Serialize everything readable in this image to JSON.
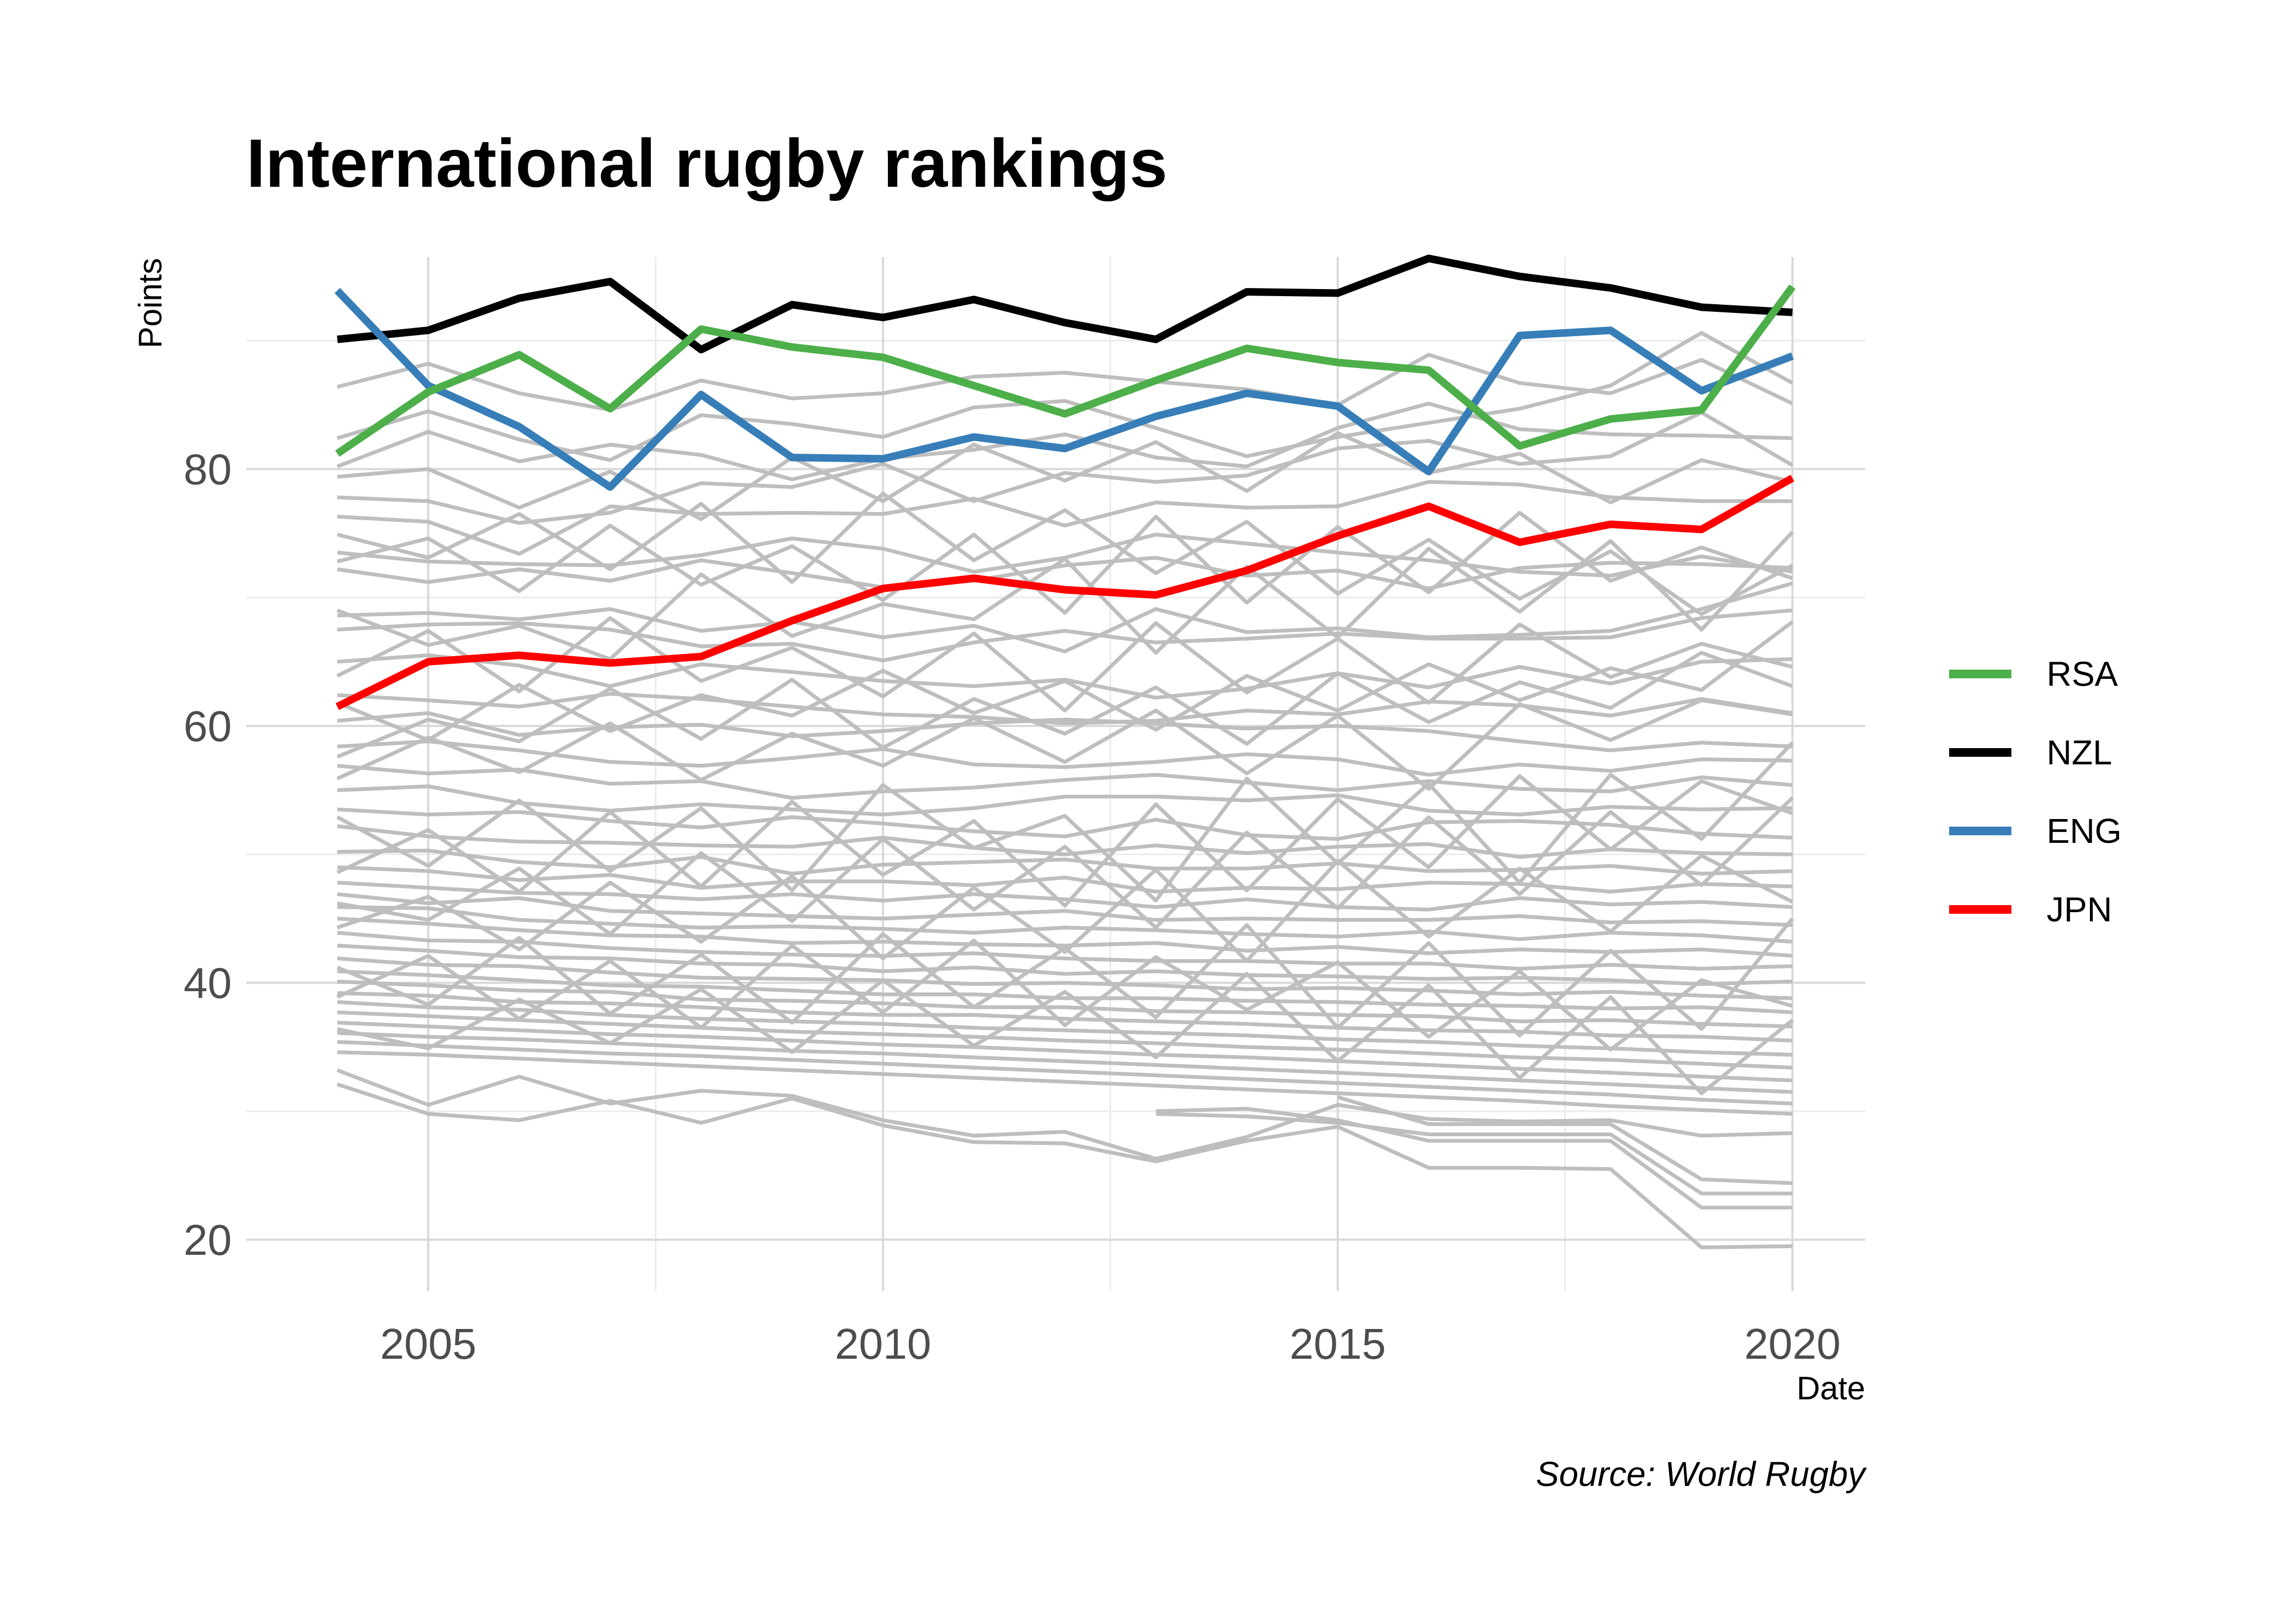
{
  "chart_data": {
    "type": "line",
    "title": "International rugby rankings",
    "xlabel": "Date",
    "ylabel": "Points",
    "caption": "Source: World Rugby",
    "x": [
      2004,
      2005,
      2006,
      2007,
      2008,
      2009,
      2010,
      2011,
      2012,
      2013,
      2014,
      2015,
      2016,
      2017,
      2018,
      2019,
      2020
    ],
    "xlim": [
      2003,
      2020.8
    ],
    "ylim": [
      16,
      96.5
    ],
    "x_ticks": [
      "2005",
      "2010",
      "2015",
      "2020"
    ],
    "x_tick_values": [
      2005,
      2010,
      2015,
      2020
    ],
    "y_ticks": [
      "20",
      "40",
      "60",
      "80"
    ],
    "y_tick_values": [
      20,
      40,
      60,
      80
    ],
    "grid": true,
    "legend_position": "right",
    "highlight_series": [
      {
        "name": "RSA",
        "color": "#4daf4a",
        "values": [
          81.2,
          86.0,
          88.9,
          84.7,
          90.9,
          89.5,
          88.7,
          86.5,
          84.3,
          86.9,
          89.4,
          88.3,
          87.7,
          81.8,
          83.9,
          84.6,
          94.2
        ]
      },
      {
        "name": "NZL",
        "color": "#000000",
        "values": [
          90.1,
          90.8,
          93.3,
          94.6,
          89.3,
          92.8,
          91.8,
          93.2,
          91.4,
          90.1,
          93.8,
          93.7,
          96.4,
          95.0,
          94.1,
          92.6,
          92.2
        ]
      },
      {
        "name": "ENG",
        "color": "#377eb8",
        "values": [
          93.9,
          86.5,
          83.3,
          78.6,
          85.8,
          80.9,
          80.8,
          82.5,
          81.6,
          84.1,
          85.9,
          84.9,
          79.8,
          90.4,
          90.8,
          86.1,
          88.8
        ]
      },
      {
        "name": "JPN",
        "color": "#ff0000",
        "values": [
          61.5,
          65.0,
          65.5,
          64.9,
          65.4,
          68.2,
          70.7,
          71.5,
          70.6,
          70.2,
          72.1,
          74.8,
          77.1,
          74.3,
          75.7,
          75.3,
          79.3
        ]
      }
    ],
    "background_series_color": "#bebebe",
    "background_series": [
      [
        86.4,
        88.2,
        85.9,
        84.6,
        86.9,
        85.5,
        85.9,
        87.2,
        87.5,
        86.8,
        86.2,
        85.0,
        88.9,
        86.7,
        85.9,
        88.5,
        85.1
      ],
      [
        82.4,
        84.5,
        82.3,
        80.7,
        84.2,
        83.5,
        82.5,
        84.8,
        85.3,
        83.2,
        81.0,
        82.5,
        83.6,
        84.7,
        86.5,
        90.6,
        86.7
      ],
      [
        80.2,
        82.9,
        80.6,
        81.9,
        81.1,
        79.2,
        80.8,
        81.5,
        82.7,
        80.9,
        80.2,
        83.2,
        85.1,
        83.1,
        82.7,
        82.6,
        82.4
      ],
      [
        77.8,
        77.5,
        75.8,
        76.6,
        78.9,
        78.6,
        80.4,
        77.5,
        79.7,
        79.0,
        79.5,
        81.6,
        82.2,
        80.4,
        81.0,
        84.4,
        80.3
      ],
      [
        76.3,
        75.9,
        73.4,
        77.1,
        76.5,
        76.6,
        76.5,
        77.7,
        75.6,
        77.4,
        77.0,
        77.1,
        79.0,
        78.8,
        77.8,
        77.5,
        77.5
      ],
      [
        73.5,
        72.8,
        72.6,
        72.5,
        73.3,
        74.6,
        73.8,
        72.0,
        73.1,
        74.9,
        74.2,
        73.5,
        72.9,
        72.0,
        71.7,
        73.2,
        72.0
      ],
      [
        72.2,
        71.2,
        72.2,
        71.3,
        72.9,
        71.9,
        70.8,
        71.3,
        72.5,
        73.1,
        71.7,
        72.1,
        70.7,
        72.3,
        72.7,
        72.6,
        72.3
      ],
      [
        68.6,
        68.8,
        68.3,
        69.1,
        67.4,
        68.1,
        66.9,
        67.8,
        65.8,
        69.1,
        67.3,
        67.6,
        66.9,
        67.1,
        67.4,
        69.1,
        71.1
      ],
      [
        67.5,
        67.9,
        68.0,
        67.5,
        66.2,
        66.4,
        65.1,
        66.5,
        67.4,
        66.5,
        66.8,
        67.2,
        66.8,
        66.8,
        66.9,
        68.4,
        69.0
      ],
      [
        65.0,
        65.5,
        64.7,
        63.1,
        64.8,
        64.2,
        63.5,
        63.1,
        63.6,
        62.2,
        62.9,
        64.1,
        63.0,
        64.6,
        63.3,
        65.0,
        65.2
      ],
      [
        62.4,
        62.0,
        61.5,
        62.5,
        62.1,
        61.5,
        60.9,
        60.7,
        60.2,
        60.4,
        61.2,
        60.9,
        61.9,
        61.6,
        60.8,
        62.1,
        61.0
      ],
      [
        60.4,
        61.0,
        59.3,
        59.9,
        60.1,
        59.2,
        59.6,
        60.2,
        60.5,
        60.2,
        59.8,
        60.0,
        59.6,
        58.8,
        58.1,
        58.7,
        58.4
      ],
      [
        58.4,
        58.8,
        58.1,
        57.2,
        56.9,
        57.5,
        58.2,
        57.0,
        56.8,
        57.2,
        57.8,
        57.4,
        56.2,
        57.0,
        56.5,
        57.4,
        57.3
      ],
      [
        56.9,
        56.3,
        56.6,
        55.5,
        55.7,
        54.4,
        54.9,
        55.2,
        55.8,
        56.2,
        55.6,
        55.0,
        55.7,
        55.1,
        54.9,
        56.0,
        55.4
      ],
      [
        55.0,
        55.3,
        54.0,
        53.4,
        53.9,
        53.5,
        53.1,
        53.6,
        54.5,
        54.5,
        54.2,
        54.6,
        53.4,
        53.1,
        53.7,
        53.5,
        53.6
      ],
      [
        53.5,
        53.1,
        53.3,
        52.6,
        52.1,
        52.9,
        52.4,
        51.8,
        51.4,
        52.7,
        51.5,
        51.2,
        52.5,
        52.6,
        52.3,
        51.6,
        51.3
      ],
      [
        52.2,
        51.4,
        51.0,
        50.9,
        50.7,
        50.6,
        51.3,
        50.5,
        50.0,
        50.7,
        50.1,
        50.6,
        50.8,
        49.8,
        50.4,
        50.1,
        50.0
      ],
      [
        50.2,
        50.3,
        49.4,
        49.0,
        49.8,
        48.5,
        49.2,
        49.4,
        49.6,
        48.9,
        48.9,
        49.3,
        48.7,
        48.8,
        49.1,
        48.5,
        48.7
      ],
      [
        49.0,
        48.7,
        48.0,
        48.4,
        47.4,
        47.9,
        47.9,
        47.6,
        48.2,
        47.1,
        47.4,
        47.3,
        47.8,
        47.7,
        47.1,
        47.7,
        47.5
      ],
      [
        47.8,
        47.4,
        47.0,
        46.9,
        46.5,
        46.9,
        46.4,
        46.9,
        46.5,
        45.9,
        46.5,
        45.9,
        45.7,
        46.6,
        46.1,
        46.3,
        45.9
      ],
      [
        46.9,
        46.2,
        46.6,
        45.6,
        45.4,
        45.2,
        45.0,
        45.3,
        45.6,
        44.9,
        45.0,
        44.9,
        44.9,
        45.2,
        44.7,
        44.8,
        44.5
      ],
      [
        45.9,
        45.8,
        44.9,
        44.6,
        44.3,
        44.4,
        44.2,
        43.9,
        44.3,
        44.1,
        43.8,
        43.6,
        44.0,
        43.4,
        43.9,
        43.7,
        43.2
      ],
      [
        45.0,
        44.6,
        44.1,
        43.7,
        43.6,
        43.1,
        43.2,
        43.0,
        42.9,
        43.1,
        42.5,
        42.8,
        42.3,
        42.6,
        42.4,
        42.6,
        42.1
      ],
      [
        43.9,
        43.3,
        43.2,
        42.7,
        42.4,
        42.2,
        42.1,
        42.3,
        41.9,
        41.7,
        41.7,
        41.5,
        41.5,
        41.1,
        41.4,
        41.1,
        41.3
      ],
      [
        42.9,
        42.5,
        42.0,
        41.9,
        41.5,
        41.4,
        40.9,
        41.2,
        40.7,
        40.9,
        40.6,
        40.5,
        40.3,
        40.4,
        40.2,
        39.9,
        40.1
      ],
      [
        41.9,
        41.4,
        41.3,
        40.8,
        40.4,
        40.3,
        40.2,
        39.9,
        40.0,
        39.8,
        39.5,
        39.6,
        39.4,
        39.1,
        39.3,
        39.0,
        38.8
      ],
      [
        40.9,
        40.6,
        40.2,
        39.8,
        39.7,
        39.4,
        39.1,
        39.1,
        38.8,
        38.8,
        38.6,
        38.5,
        38.3,
        38.2,
        38.0,
        38.1,
        37.7
      ],
      [
        40.1,
        39.8,
        39.4,
        39.3,
        38.7,
        38.6,
        38.4,
        38.1,
        38.1,
        37.8,
        37.7,
        37.5,
        37.4,
        37.0,
        37.1,
        36.8,
        36.6
      ],
      [
        39.2,
        39.0,
        38.5,
        38.4,
        38.1,
        37.7,
        37.5,
        37.5,
        37.2,
        37.0,
        36.8,
        36.5,
        36.3,
        36.2,
        35.9,
        35.8,
        35.5
      ],
      [
        38.5,
        38.1,
        37.9,
        37.5,
        37.2,
        37.0,
        36.8,
        36.5,
        36.3,
        36.1,
        35.9,
        35.6,
        35.4,
        35.1,
        34.9,
        34.6,
        34.4
      ],
      [
        37.7,
        37.4,
        37.1,
        36.8,
        36.5,
        36.2,
        36.0,
        35.8,
        35.5,
        35.3,
        35.0,
        34.8,
        34.5,
        34.2,
        34.0,
        33.7,
        33.4
      ],
      [
        36.9,
        36.6,
        36.3,
        36.0,
        35.8,
        35.5,
        35.2,
        35.0,
        34.7,
        34.4,
        34.2,
        33.9,
        33.6,
        33.3,
        33.0,
        32.7,
        32.4
      ],
      [
        36.1,
        35.8,
        35.6,
        35.3,
        35.0,
        34.7,
        34.5,
        34.2,
        33.9,
        33.6,
        33.3,
        33.0,
        32.7,
        32.4,
        32.1,
        31.8,
        31.5
      ],
      [
        35.4,
        35.1,
        34.8,
        34.5,
        34.3,
        34.0,
        33.7,
        33.4,
        33.1,
        32.8,
        32.5,
        32.2,
        31.9,
        31.6,
        31.3,
        30.9,
        30.6
      ],
      [
        34.6,
        34.4,
        34.1,
        33.8,
        33.5,
        33.2,
        32.9,
        32.6,
        32.3,
        32.0,
        31.7,
        31.4,
        31.1,
        30.8,
        30.4,
        30.1,
        29.8
      ],
      [
        33.2,
        30.5,
        32.7,
        30.6,
        31.6,
        31.2,
        29.3,
        28.1,
        28.4,
        26.3,
        28.0,
        30.5,
        29.4,
        29.2,
        29.3,
        28.1,
        28.3
      ],
      [
        32.1,
        29.8,
        29.3,
        30.8,
        29.1,
        31.0,
        28.9,
        27.6,
        27.5,
        26.1,
        27.7,
        28.8,
        25.6,
        25.6,
        25.5,
        19.4,
        19.5
      ],
      [
        null,
        null,
        null,
        null,
        null,
        null,
        null,
        null,
        null,
        30.0,
        30.2,
        29.3,
        27.7,
        27.7,
        27.7,
        22.5,
        22.5
      ],
      [
        null,
        null,
        null,
        null,
        null,
        null,
        null,
        null,
        null,
        29.8,
        29.6,
        29.1,
        28.2,
        28.2,
        28.2,
        23.6,
        23.6
      ],
      [
        null,
        null,
        null,
        null,
        null,
        null,
        null,
        null,
        null,
        null,
        null,
        31.1,
        29.0,
        29.0,
        29.0,
        24.7,
        24.4
      ],
      [
        61.8,
        58.9,
        63.2,
        59.6,
        62.4,
        60.8,
        64.3,
        61.0,
        63.5,
        59.7,
        63.9,
        61.2,
        64.8,
        62.0,
        64.5,
        62.8,
        68.1
      ],
      [
        55.9,
        59.1,
        56.4,
        60.2,
        55.8,
        59.4,
        56.9,
        60.6,
        57.2,
        61.2,
        56.3,
        60.8,
        55.1,
        61.7,
        58.9,
        62.0,
        60.9
      ],
      [
        52.9,
        49.1,
        54.2,
        48.7,
        53.6,
        47.2,
        55.4,
        50.5,
        53.0,
        46.4,
        55.9,
        49.3,
        55.5,
        47.8,
        56.2,
        51.2,
        58.7
      ],
      [
        48.6,
        51.9,
        47.1,
        53.3,
        47.5,
        54.1,
        48.4,
        52.6,
        46.0,
        53.9,
        47.2,
        54.3,
        49.0,
        56.1,
        50.4,
        55.7,
        53.2
      ],
      [
        44.3,
        46.7,
        42.6,
        47.8,
        43.2,
        48.3,
        41.9,
        47.4,
        42.4,
        48.8,
        41.7,
        49.5,
        43.6,
        48.9,
        44.0,
        49.9,
        46.3
      ],
      [
        41.2,
        38.3,
        43.5,
        37.6,
        42.2,
        36.9,
        43.8,
        38.1,
        42.7,
        37.3,
        44.5,
        36.5,
        43.1,
        35.9,
        42.5,
        36.4,
        45.0
      ],
      [
        38.9,
        42.1,
        37.2,
        41.7,
        36.5,
        42.9,
        37.7,
        43.3,
        36.7,
        42.0,
        37.9,
        41.6,
        35.8,
        40.9,
        34.8,
        40.2,
        38.2
      ],
      [
        36.4,
        34.9,
        38.7,
        35.3,
        39.5,
        34.6,
        40.2,
        35.1,
        39.3,
        34.2,
        40.7,
        33.9,
        39.8,
        32.6,
        38.9,
        31.4,
        37.1
      ],
      [
        72.8,
        74.6,
        70.5,
        75.6,
        71.0,
        74.0,
        69.8,
        74.9,
        68.8,
        76.3,
        69.6,
        75.5,
        70.4,
        76.6,
        71.3,
        73.9,
        71.5
      ],
      [
        69.0,
        66.3,
        67.8,
        65.2,
        71.8,
        67.0,
        69.5,
        68.3,
        73.0,
        65.7,
        72.4,
        66.9,
        73.8,
        68.9,
        74.4,
        67.5,
        75.1
      ],
      [
        57.6,
        60.5,
        58.8,
        62.9,
        59.0,
        63.6,
        58.3,
        62.1,
        59.4,
        63.0,
        58.6,
        64.1,
        60.3,
        63.4,
        61.4,
        65.7,
        63.1
      ],
      [
        46.2,
        44.9,
        48.9,
        43.8,
        50.1,
        44.8,
        51.2,
        45.7,
        50.6,
        44.3,
        51.7,
        45.8,
        52.9,
        46.9,
        53.3,
        47.6,
        54.4
      ],
      [
        79.4,
        80.0,
        77.0,
        79.8,
        76.1,
        80.9,
        77.5,
        81.9,
        79.1,
        82.1,
        78.3,
        82.8,
        79.7,
        81.2,
        77.4,
        80.7,
        79.0
      ],
      [
        74.9,
        73.1,
        76.5,
        72.2,
        77.3,
        71.2,
        78.1,
        72.9,
        76.8,
        71.9,
        75.9,
        70.3,
        74.5,
        69.9,
        73.6,
        68.7,
        72.5
      ],
      [
        63.9,
        67.4,
        62.7,
        68.4,
        63.5,
        66.1,
        62.3,
        67.2,
        61.2,
        68.0,
        62.6,
        66.8,
        61.8,
        67.9,
        63.8,
        66.4,
        64.6
      ]
    ]
  }
}
